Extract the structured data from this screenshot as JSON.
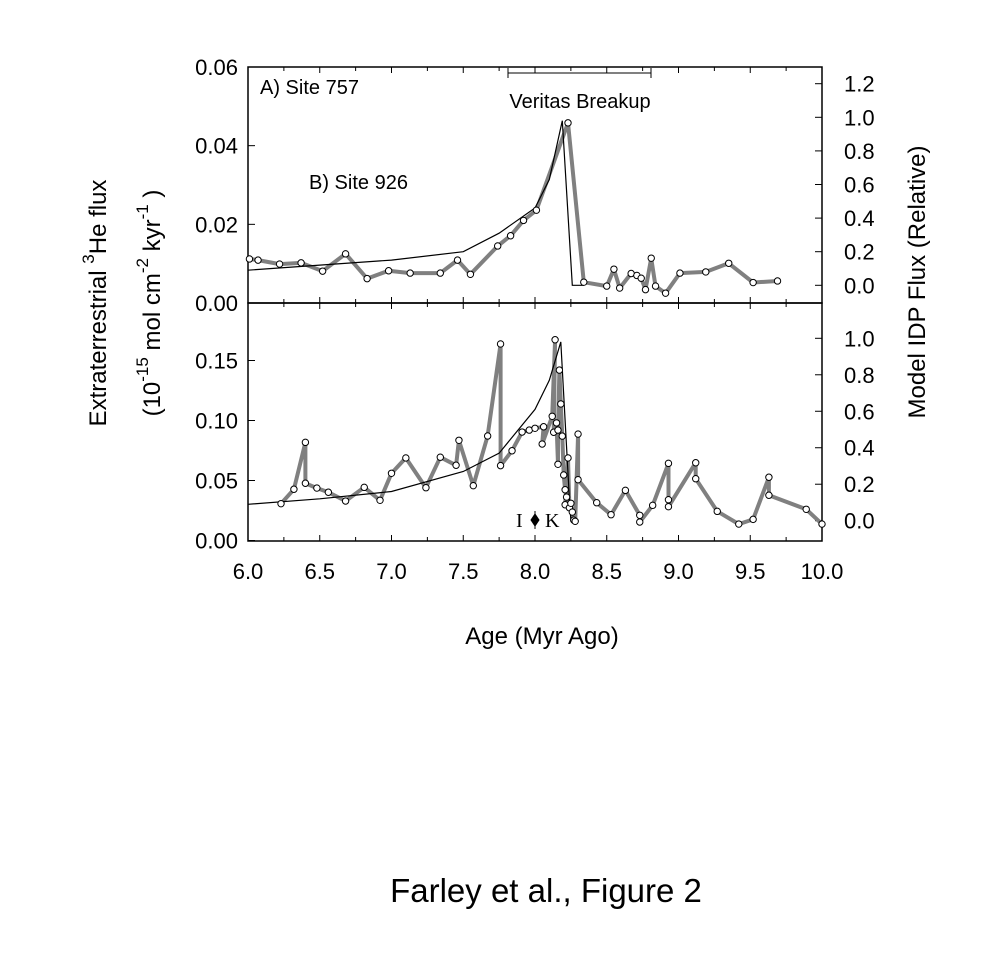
{
  "caption": "Farley et al., Figure 2",
  "y_title_line1": {
    "a": "Extraterrestrial ",
    "sup": "3",
    "b": "He flux"
  },
  "y_title_line2": {
    "a": "(10",
    "sup1": "-15",
    "b": " mol cm",
    "sup2": "-2",
    "c": " kyr",
    "sup3": "-1",
    "d": " )"
  },
  "colors": {
    "data_line": "#808080",
    "model_line": "#000000",
    "marker_fill": "#ffffff"
  },
  "chart_data": [
    {
      "type": "line",
      "panel": "top",
      "annotations": [
        "A) Site 757",
        "B) Site 926",
        "Veritas Breakup"
      ],
      "veritas_range": [
        7.81,
        8.81
      ],
      "xlabel": "Age (Myr Ago)",
      "xlim": [
        6.0,
        10.0
      ],
      "ylabel": "Extraterrestrial 3He flux (10-15 mol cm-2 kyr-1)",
      "ylim": [
        0,
        0.06
      ],
      "yticks": [
        "0.00",
        "0.02",
        "0.04",
        "0.06"
      ],
      "y2label": "Model IDP Flux (Relative)",
      "y2ticks": [
        "0.0",
        "0.2",
        "0.4",
        "0.6",
        "0.8",
        "1.0",
        "1.2"
      ],
      "series": [
        {
          "name": "Site 757 3He flux",
          "axis": "left",
          "x": [
            6.01,
            6.07,
            6.22,
            6.37,
            6.52,
            6.68,
            6.83,
            6.98,
            7.13,
            7.34,
            7.46,
            7.55,
            7.74,
            7.83,
            7.92,
            8.01,
            8.23,
            8.34,
            8.5,
            8.55,
            8.59,
            8.67,
            8.71,
            8.74,
            8.77,
            8.81,
            8.84,
            8.91,
            9.01,
            9.19,
            9.35,
            9.52,
            9.69
          ],
          "y": [
            0.0112,
            0.0109,
            0.0099,
            0.0102,
            0.0081,
            0.0125,
            0.0062,
            0.0082,
            0.0076,
            0.0076,
            0.0109,
            0.0073,
            0.0145,
            0.0171,
            0.021,
            0.0236,
            0.0458,
            0.0053,
            0.0043,
            0.0086,
            0.0038,
            0.0075,
            0.007,
            0.0063,
            0.0034,
            0.0114,
            0.0043,
            0.0025,
            0.0076,
            0.0079,
            0.0101,
            0.0052,
            0.0056
          ]
        },
        {
          "name": "Model IDP flux",
          "axis": "right",
          "x": [
            6.0,
            6.5,
            7.0,
            7.5,
            7.75,
            8.0,
            8.1,
            8.19,
            8.26,
            8.34
          ],
          "y": [
            0.09,
            0.12,
            0.15,
            0.2,
            0.31,
            0.46,
            0.63,
            0.98,
            0.0,
            0.0
          ]
        }
      ]
    },
    {
      "type": "line",
      "panel": "bottom",
      "annotations": [
        "I",
        "K"
      ],
      "xlabel": "Age (Myr Ago)",
      "xlim": [
        6.0,
        10.0
      ],
      "xticks": [
        "6.0",
        "6.5",
        "7.0",
        "7.5",
        "8.0",
        "8.5",
        "9.0",
        "9.5",
        "10.0"
      ],
      "ylim": [
        0,
        0.15
      ],
      "yticks": [
        "0.00",
        "0.05",
        "0.10",
        "0.15"
      ],
      "y2ticks": [
        "0.0",
        "0.2",
        "0.4",
        "0.6",
        "0.8",
        "1.0"
      ],
      "series": [
        {
          "name": "Site 926 3He flux",
          "axis": "left",
          "x": [
            6.23,
            6.32,
            6.4,
            6.4,
            6.48,
            6.56,
            6.68,
            6.81,
            6.92,
            7.0,
            7.1,
            7.24,
            7.34,
            7.45,
            7.47,
            7.57,
            7.67,
            7.76,
            7.76,
            7.84,
            7.91,
            7.96,
            8.0,
            8.06,
            8.05,
            8.12,
            8.14,
            8.13,
            8.15,
            8.16,
            8.16,
            8.17,
            8.18,
            8.19,
            8.2,
            8.21,
            8.22,
            8.21,
            8.23,
            8.24,
            8.25,
            8.26,
            8.27,
            8.28,
            8.3,
            8.3,
            8.43,
            8.53,
            8.63,
            8.73,
            8.73,
            8.82,
            8.93,
            8.93,
            8.93,
            9.12,
            9.12,
            9.27,
            9.42,
            9.52,
            9.63,
            9.63,
            9.89,
            10.0
          ],
          "y": [
            0.0307,
            0.0427,
            0.0818,
            0.0477,
            0.0437,
            0.0402,
            0.0329,
            0.0443,
            0.0335,
            0.056,
            0.0688,
            0.044,
            0.0694,
            0.0627,
            0.0835,
            0.0457,
            0.0871,
            0.1638,
            0.0624,
            0.0748,
            0.0904,
            0.092,
            0.0935,
            0.0948,
            0.0804,
            0.1035,
            0.1673,
            0.0902,
            0.098,
            0.0635,
            0.092,
            0.142,
            0.1138,
            0.087,
            0.0546,
            0.0423,
            0.0362,
            0.0298,
            0.0688,
            0.0273,
            0.031,
            0.0237,
            0.017,
            0.016,
            0.0887,
            0.0507,
            0.0315,
            0.0215,
            0.0418,
            0.021,
            0.0154,
            0.0293,
            0.0643,
            0.034,
            0.0282,
            0.0648,
            0.0515,
            0.0243,
            0.0137,
            0.0176,
            0.0527,
            0.0377,
            0.026,
            0.0137
          ]
        },
        {
          "name": "Model IDP flux",
          "axis": "right",
          "x": [
            6.0,
            6.5,
            7.0,
            7.5,
            7.75,
            8.0,
            8.1,
            8.18,
            8.24,
            8.25
          ],
          "y": [
            0.09,
            0.12,
            0.16,
            0.27,
            0.37,
            0.61,
            0.77,
            0.98,
            0.12,
            0.0
          ]
        }
      ]
    }
  ]
}
